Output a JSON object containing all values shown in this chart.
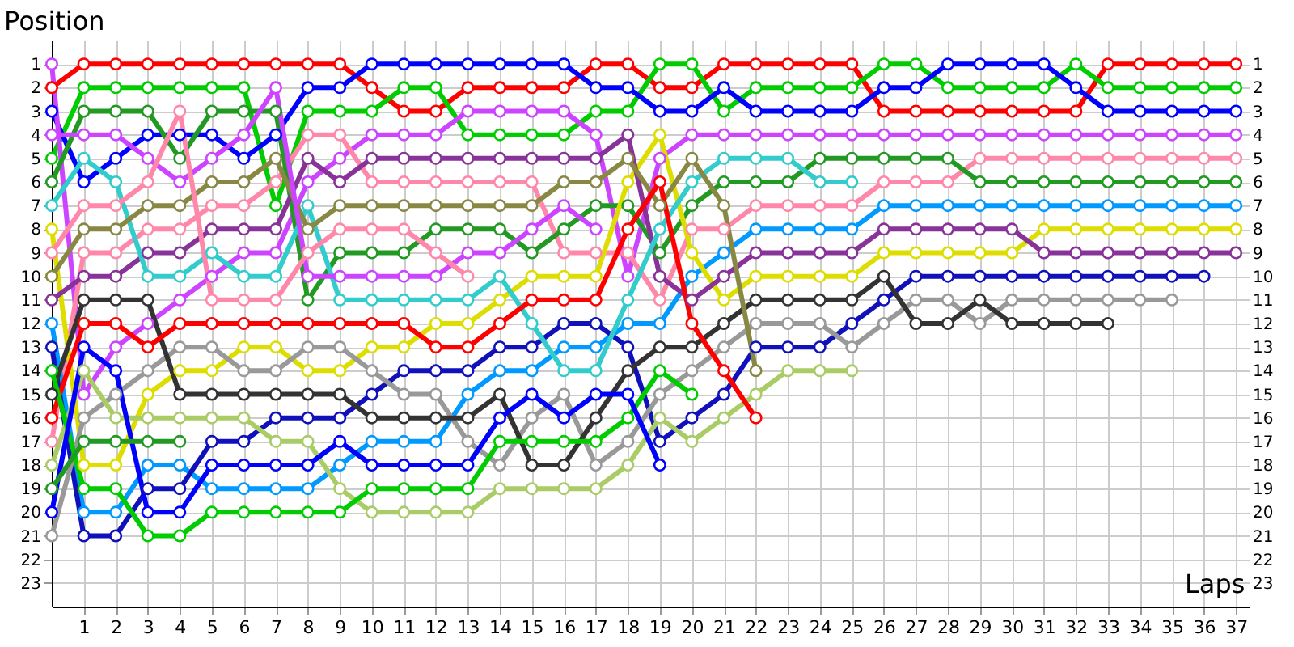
{
  "chart_data": {
    "type": "line",
    "xlabel": "Laps",
    "ylabel": "Position",
    "x": [
      0,
      1,
      2,
      3,
      4,
      5,
      6,
      7,
      8,
      9,
      10,
      11,
      12,
      13,
      14,
      15,
      16,
      17,
      18,
      19,
      20,
      21,
      22,
      23,
      24,
      25,
      26,
      27,
      28,
      29,
      30,
      31,
      32,
      33,
      34,
      35,
      36,
      37
    ],
    "xlim": [
      0,
      37.4
    ],
    "xticks": [
      1,
      2,
      3,
      4,
      5,
      6,
      7,
      8,
      9,
      10,
      11,
      12,
      13,
      14,
      15,
      16,
      17,
      18,
      19,
      20,
      21,
      22,
      23,
      24,
      25,
      26,
      27,
      28,
      29,
      30,
      31,
      32,
      33,
      34,
      35,
      36,
      37
    ],
    "ylim": [
      24,
      0
    ],
    "yticks": [
      1,
      2,
      3,
      4,
      5,
      6,
      7,
      8,
      9,
      10,
      11,
      12,
      13,
      14,
      15,
      16,
      17,
      18,
      19,
      20,
      21,
      22,
      23
    ],
    "y2lim": [
      24,
      0
    ],
    "y2ticks": [
      1,
      2,
      3,
      4,
      5,
      6,
      7,
      8,
      9,
      10,
      11,
      12,
      13,
      14,
      15,
      16,
      17,
      18,
      19,
      20,
      21,
      22,
      23
    ],
    "grid": true,
    "marker": "circle",
    "line_style": "solid",
    "series": [
      {
        "color": "#ff0000",
        "values": [
          2,
          1,
          1,
          1,
          1,
          1,
          1,
          1,
          1,
          1,
          2,
          3,
          3,
          2,
          2,
          2,
          2,
          1,
          1,
          2,
          2,
          1,
          1,
          1,
          1,
          1,
          3,
          3,
          3,
          3,
          3,
          3,
          3,
          1,
          1,
          1,
          1,
          1
        ]
      },
      {
        "color": "#00cc00",
        "values": [
          5,
          2,
          2,
          2,
          2,
          2,
          2,
          7,
          3,
          3,
          3,
          2,
          2,
          4,
          4,
          4,
          4,
          3,
          3,
          1,
          1,
          3,
          2,
          2,
          2,
          2,
          1,
          1,
          2,
          2,
          2,
          2,
          1,
          2,
          2,
          2,
          2,
          2
        ]
      },
      {
        "color": "#0000ff",
        "values": [
          3,
          6,
          5,
          4,
          4,
          4,
          5,
          4,
          2,
          2,
          1,
          1,
          1,
          1,
          1,
          1,
          1,
          2,
          2,
          3,
          3,
          2,
          3,
          3,
          3,
          3,
          2,
          2,
          1,
          1,
          1,
          1,
          2,
          3,
          3,
          3,
          3,
          3
        ]
      },
      {
        "color": "#cc44ff",
        "values": [
          1,
          15,
          13,
          12,
          11,
          10,
          9,
          9,
          6,
          5,
          4,
          4,
          4,
          3,
          3,
          3,
          3,
          4,
          10,
          5,
          4,
          4,
          4,
          4,
          4,
          4,
          4,
          4,
          4,
          4,
          4,
          4,
          4,
          4,
          4,
          4,
          4,
          4
        ]
      },
      {
        "color": "#ff88aa",
        "values": [
          17,
          9,
          9,
          8,
          8,
          7,
          7,
          6,
          4,
          4,
          6,
          6,
          6,
          6,
          6,
          6,
          9,
          9,
          9,
          11,
          8,
          8,
          7,
          7,
          7,
          7,
          6,
          6,
          6,
          5,
          5,
          5,
          5,
          5,
          5,
          5,
          5,
          5
        ]
      },
      {
        "color": "#229922",
        "values": [
          6,
          3,
          3,
          3,
          5,
          3,
          3,
          3,
          11,
          9,
          9,
          9,
          8,
          8,
          8,
          9,
          8,
          7,
          7,
          9,
          7,
          6,
          6,
          6,
          5,
          5,
          5,
          5,
          5,
          6,
          6,
          6,
          6,
          6,
          6,
          6,
          6,
          6
        ]
      },
      {
        "color": "#0099ff",
        "values": [
          12,
          20,
          20,
          18,
          18,
          19,
          19,
          19,
          19,
          18,
          17,
          17,
          17,
          15,
          14,
          14,
          13,
          13,
          12,
          12,
          10,
          9,
          8,
          8,
          8,
          8,
          7,
          7,
          7,
          7,
          7,
          7,
          7,
          7,
          7,
          7,
          7,
          7
        ]
      },
      {
        "color": "#dddd00",
        "values": [
          8,
          18,
          18,
          15,
          14,
          14,
          13,
          13,
          14,
          14,
          13,
          13,
          12,
          12,
          11,
          10,
          10,
          10,
          6,
          4,
          9,
          11,
          10,
          10,
          10,
          10,
          9,
          9,
          9,
          9,
          9,
          8,
          8,
          8,
          8,
          8,
          8,
          8
        ]
      },
      {
        "color": "#883399",
        "values": [
          11,
          10,
          10,
          9,
          9,
          8,
          8,
          8,
          5,
          6,
          5,
          5,
          5,
          5,
          5,
          5,
          5,
          5,
          4,
          10,
          11,
          10,
          9,
          9,
          9,
          9,
          8,
          8,
          8,
          8,
          8,
          9,
          9,
          9,
          9,
          9,
          9,
          9
        ]
      },
      {
        "color": "#1111bb",
        "values": [
          13,
          21,
          21,
          19,
          19,
          17,
          17,
          16,
          16,
          16,
          15,
          14,
          14,
          14,
          13,
          13,
          12,
          12,
          13,
          17,
          16,
          15,
          13,
          13,
          13,
          12,
          11,
          10,
          10,
          10,
          10,
          10,
          10,
          10,
          10,
          10,
          10,
          null
        ]
      },
      {
        "color": "#999999",
        "values": [
          21,
          16,
          15,
          14,
          13,
          13,
          14,
          14,
          13,
          13,
          14,
          15,
          15,
          17,
          18,
          16,
          15,
          18,
          17,
          15,
          14,
          13,
          12,
          12,
          12,
          13,
          12,
          11,
          11,
          12,
          11,
          11,
          11,
          11,
          11,
          11,
          null,
          null
        ]
      },
      {
        "color": "#333333",
        "values": [
          15,
          11,
          11,
          11,
          15,
          15,
          15,
          15,
          15,
          15,
          16,
          16,
          16,
          16,
          15,
          18,
          18,
          16,
          14,
          13,
          13,
          12,
          11,
          11,
          11,
          11,
          10,
          12,
          12,
          11,
          12,
          12,
          12,
          12,
          null,
          null,
          null,
          null
        ]
      },
      {
        "color": "#33cccc",
        "values": [
          7,
          5,
          6,
          10,
          10,
          9,
          10,
          10,
          7,
          11,
          11,
          11,
          11,
          11,
          10,
          12,
          14,
          14,
          11,
          8,
          6,
          5,
          5,
          5,
          6,
          6,
          null,
          null,
          null,
          null,
          null,
          null,
          null,
          null,
          null,
          null,
          null,
          null
        ]
      },
      {
        "color": "#aacc66",
        "values": [
          18,
          14,
          16,
          16,
          16,
          16,
          16,
          17,
          17,
          19,
          20,
          20,
          20,
          20,
          19,
          19,
          19,
          19,
          18,
          16,
          17,
          16,
          15,
          14,
          14,
          14,
          null,
          null,
          null,
          null,
          null,
          null,
          null,
          null,
          null,
          null,
          null,
          null
        ]
      },
      {
        "color": "#888844",
        "values": [
          10,
          8,
          8,
          7,
          7,
          6,
          6,
          5,
          8,
          7,
          7,
          7,
          7,
          7,
          7,
          7,
          6,
          6,
          5,
          7,
          5,
          7,
          14,
          null,
          null,
          null,
          null,
          null,
          null,
          null,
          null,
          null,
          null,
          null,
          null,
          null,
          null,
          null
        ]
      },
      {
        "color": "#ff0000",
        "values": [
          16,
          12,
          12,
          13,
          12,
          12,
          12,
          12,
          12,
          12,
          12,
          12,
          13,
          13,
          12,
          11,
          11,
          11,
          8,
          6,
          12,
          14,
          16,
          null,
          null,
          null,
          null,
          null,
          null,
          null,
          null,
          null,
          null,
          null,
          null,
          null,
          null,
          null
        ]
      },
      {
        "color": "#00cc00",
        "values": [
          14,
          19,
          19,
          21,
          21,
          20,
          20,
          20,
          20,
          20,
          19,
          19,
          19,
          19,
          17,
          17,
          17,
          17,
          16,
          14,
          15,
          null,
          null,
          null,
          null,
          null,
          null,
          null,
          null,
          null,
          null,
          null,
          null,
          null,
          null,
          null,
          null,
          null
        ]
      },
      {
        "color": "#0000ff",
        "values": [
          20,
          13,
          14,
          20,
          20,
          18,
          18,
          18,
          18,
          17,
          18,
          18,
          18,
          18,
          16,
          15,
          16,
          15,
          15,
          18,
          null,
          null,
          null,
          null,
          null,
          null,
          null,
          null,
          null,
          null,
          null,
          null,
          null,
          null,
          null,
          null,
          null,
          null
        ]
      },
      {
        "color": "#cc44ff",
        "values": [
          4,
          4,
          4,
          5,
          6,
          5,
          4,
          2,
          10,
          10,
          10,
          10,
          10,
          9,
          9,
          8,
          7,
          8,
          null,
          null,
          null,
          null,
          null,
          null,
          null,
          null,
          null,
          null,
          null,
          null,
          null,
          null,
          null,
          null,
          null,
          null,
          null,
          null
        ]
      },
      {
        "color": "#ff88aa",
        "values": [
          9,
          7,
          7,
          6,
          3,
          11,
          11,
          11,
          9,
          8,
          8,
          8,
          9,
          10,
          null,
          null,
          null,
          null,
          null,
          null,
          null,
          null,
          null,
          null,
          null,
          null,
          null,
          null,
          null,
          null,
          null,
          null,
          null,
          null,
          null,
          null,
          null,
          null
        ]
      },
      {
        "color": "#229922",
        "values": [
          19,
          17,
          17,
          17,
          17,
          null,
          null,
          null,
          null,
          null,
          null,
          null,
          null,
          null,
          null,
          null,
          null,
          null,
          null,
          null,
          null,
          null,
          null,
          null,
          null,
          null,
          null,
          null,
          null,
          null,
          null,
          null,
          null,
          null,
          null,
          null,
          null,
          null
        ]
      }
    ]
  }
}
